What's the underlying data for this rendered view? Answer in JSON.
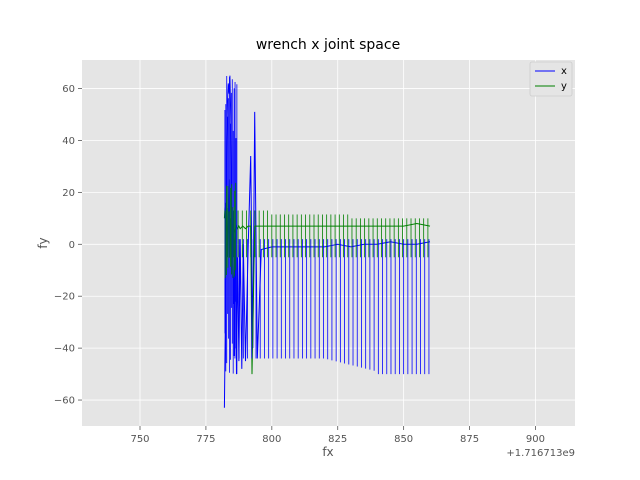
{
  "chart_data": {
    "type": "line",
    "title": "wrench x joint space",
    "xlabel": "fx",
    "ylabel": "fy",
    "x_offset_label": "+1.716713e9",
    "xlim": [
      728,
      915
    ],
    "ylim": [
      -70,
      71
    ],
    "xticks": [
      750,
      775,
      800,
      825,
      850,
      875,
      900
    ],
    "yticks": [
      -60,
      -40,
      -20,
      0,
      20,
      40,
      60
    ],
    "grid": true,
    "legend_position": "top-right",
    "series": [
      {
        "name": "x",
        "color": "#0000ff",
        "x": [
          782.0,
          782.3,
          782.6,
          782.9,
          783.2,
          783.5,
          783.8,
          784.1,
          784.4,
          784.7,
          785.0,
          785.3,
          785.6,
          785.9,
          786.2,
          786.6,
          787.0,
          787.5,
          788.0,
          788.6,
          789.2,
          790.0,
          791.0,
          792.0,
          792.8,
          793.5,
          794.5,
          796.0,
          800.0,
          805.0,
          810.0,
          815.0,
          820.0,
          825.0,
          830.0,
          835.0,
          840.0,
          845.0,
          850.0,
          855.0,
          860.0
        ],
        "y": [
          -63,
          -35,
          10,
          40,
          55,
          62,
          58,
          65,
          50,
          30,
          10,
          -5,
          -23,
          -10,
          5,
          -50,
          -5,
          -45,
          2,
          -48,
          0,
          -45,
          -2,
          34,
          -40,
          51,
          -44,
          -2,
          -1,
          -1,
          -1,
          -1,
          -1,
          0,
          -1,
          0,
          0,
          1,
          0,
          0,
          1
        ]
      },
      {
        "name": "y",
        "color": "#008000",
        "x": [
          782.0,
          782.3,
          782.6,
          782.9,
          783.2,
          783.5,
          783.8,
          784.1,
          784.4,
          784.7,
          785.0,
          785.3,
          785.6,
          786.0,
          786.5,
          787.0,
          787.5,
          788.0,
          789.0,
          790.0,
          791.0,
          792.0,
          792.5,
          793.5,
          795.0,
          800.0,
          805.0,
          810.0,
          815.0,
          820.0,
          825.0,
          830.0,
          835.0,
          840.0,
          845.0,
          850.0,
          855.0,
          860.0
        ],
        "y": [
          10,
          16,
          5,
          14,
          -5,
          12,
          25,
          0,
          10,
          -8,
          8,
          4,
          6,
          5,
          7,
          6,
          7,
          6,
          7,
          6,
          7,
          7,
          -50,
          7,
          7,
          7,
          7,
          7,
          7,
          7,
          7,
          7,
          7,
          7,
          7,
          7,
          8,
          7
        ]
      }
    ]
  }
}
